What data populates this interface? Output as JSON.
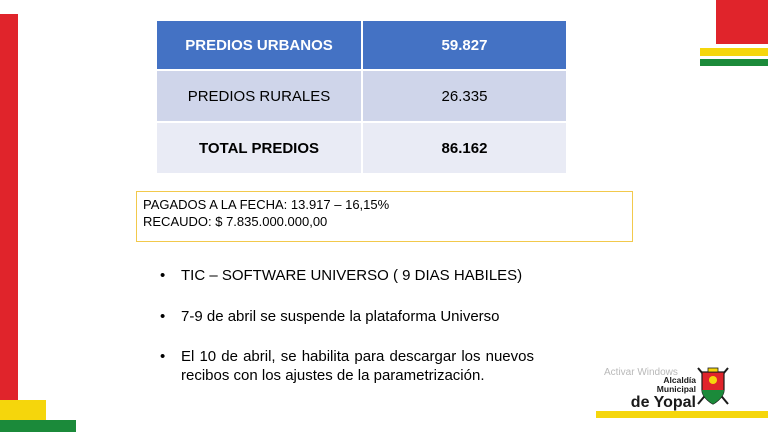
{
  "table": {
    "rows": [
      {
        "label": "PREDIOS URBANOS",
        "value": "59.827"
      },
      {
        "label": "PREDIOS RURALES",
        "value": "26.335"
      },
      {
        "label": "TOTAL PREDIOS",
        "value": "86.162"
      }
    ]
  },
  "payment_box": {
    "line1": "PAGADOS A LA FECHA: 13.917 – 16,15%",
    "line2": "RECAUDO: $ 7.835.000.000,00"
  },
  "bullets": [
    "TIC – SOFTWARE UNIVERSO ( 9 DIAS HABILES)",
    " 7-9 de abril se suspende la plataforma Universo",
    "El 10 de abril, se habilita para descargar los nuevos recibos con los ajustes de la parametrización."
  ],
  "bullet_marker": "•",
  "watermark": "Activar Windows",
  "logo": {
    "line1": "Alcaldía Municipal",
    "line2": "de Yopal"
  },
  "colors": {
    "header_blue": "#4472c4",
    "row_light": "#cfd5ea",
    "row_lighter": "#e9ebf5",
    "flag_red": "#e0242b",
    "flag_yellow": "#f5d60c",
    "flag_green": "#1b8a3a"
  }
}
